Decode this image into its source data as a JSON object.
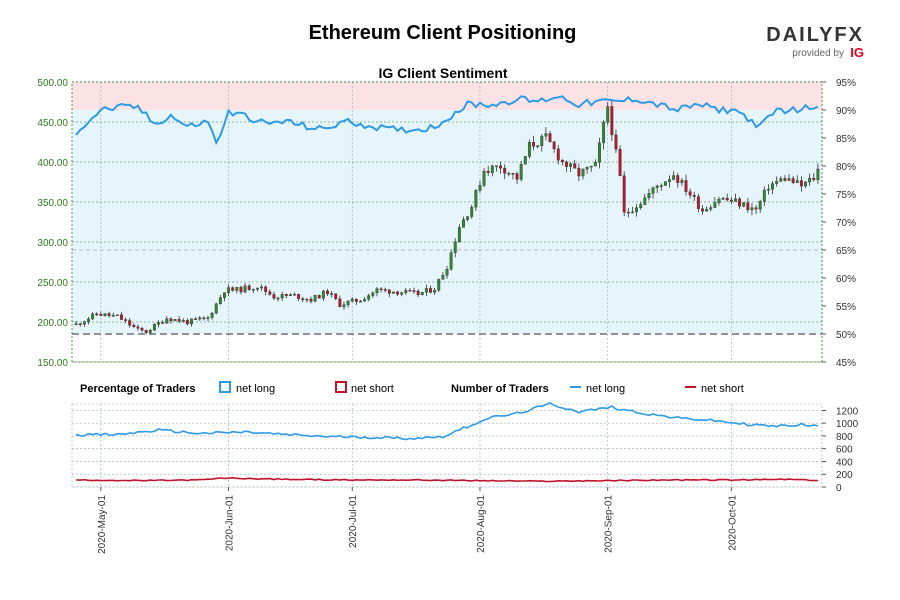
{
  "header": {
    "title": "Ethereum Client Positioning",
    "subtitle": "IG Client Sentiment",
    "brand": {
      "logo_text": "DAILYFX",
      "provided_by": "provided by",
      "ig_mark": "IG",
      "accent": "#e8001c"
    }
  },
  "colors": {
    "net_long": "#2e9be6",
    "net_short": "#c0142a",
    "candle_up": "#2f8a2f",
    "candle_down": "#c0142a",
    "long_zone_fill": "#e6f4fb",
    "short_zone_fill": "#fbe3e5",
    "axis_text": "#2e7d1e",
    "grid": "#9aa8b0"
  },
  "legend": {
    "pct_title": "Percentage of Traders",
    "pct_long": "net long",
    "pct_short": "net short",
    "num_title": "Number of Traders",
    "num_long": "net long",
    "num_short": "net short"
  },
  "chart_data": [
    {
      "type": "candlestick",
      "subtitle": "IG Client Sentiment",
      "series_name": "Ethereum price",
      "ylim": [
        150,
        500
      ],
      "yticks": [
        "150.00",
        "200.00",
        "250.00",
        "300.00",
        "350.00",
        "400.00",
        "450.00",
        "500.00"
      ],
      "y2_label_ticks": [
        "45%",
        "50%",
        "55%",
        "60%",
        "65%",
        "70%",
        "75%",
        "80%",
        "85%",
        "90%",
        "95%"
      ],
      "y2lim": [
        45,
        95
      ],
      "reference_line_pct": 50,
      "close_anchors": [
        [
          "2020-04-25",
          197
        ],
        [
          "2020-04-30",
          210
        ],
        [
          "2020-05-05",
          207
        ],
        [
          "2020-05-10",
          190
        ],
        [
          "2020-05-12",
          188
        ],
        [
          "2020-05-17",
          205
        ],
        [
          "2020-05-22",
          200
        ],
        [
          "2020-05-27",
          205
        ],
        [
          "2020-05-31",
          240
        ],
        [
          "2020-06-03",
          240
        ],
        [
          "2020-06-08",
          245
        ],
        [
          "2020-06-12",
          232
        ],
        [
          "2020-06-17",
          233
        ],
        [
          "2020-06-21",
          228
        ],
        [
          "2020-06-25",
          238
        ],
        [
          "2020-06-28",
          222
        ],
        [
          "2020-07-03",
          228
        ],
        [
          "2020-07-07",
          240
        ],
        [
          "2020-07-12",
          238
        ],
        [
          "2020-07-17",
          235
        ],
        [
          "2020-07-21",
          242
        ],
        [
          "2020-07-24",
          270
        ],
        [
          "2020-07-27",
          320
        ],
        [
          "2020-07-30",
          345
        ],
        [
          "2020-08-02",
          390
        ],
        [
          "2020-08-06",
          395
        ],
        [
          "2020-08-10",
          380
        ],
        [
          "2020-08-13",
          420
        ],
        [
          "2020-08-17",
          430
        ],
        [
          "2020-08-21",
          400
        ],
        [
          "2020-08-25",
          385
        ],
        [
          "2020-08-29",
          395
        ],
        [
          "2020-09-01",
          470
        ],
        [
          "2020-09-02",
          440
        ],
        [
          "2020-09-04",
          380
        ],
        [
          "2020-09-05",
          335
        ],
        [
          "2020-09-09",
          350
        ],
        [
          "2020-09-13",
          370
        ],
        [
          "2020-09-17",
          385
        ],
        [
          "2020-09-21",
          360
        ],
        [
          "2020-09-24",
          340
        ],
        [
          "2020-09-28",
          355
        ],
        [
          "2020-10-02",
          350
        ],
        [
          "2020-10-07",
          340
        ],
        [
          "2020-10-10",
          370
        ],
        [
          "2020-10-14",
          380
        ],
        [
          "2020-10-18",
          370
        ],
        [
          "2020-10-21",
          380
        ],
        [
          "2020-10-22",
          390
        ]
      ],
      "net_long_pct_anchors": [
        [
          "2020-04-25",
          86
        ],
        [
          "2020-04-28",
          88
        ],
        [
          "2020-05-01",
          90
        ],
        [
          "2020-05-06",
          90.5
        ],
        [
          "2020-05-10",
          90.5
        ],
        [
          "2020-05-14",
          87.5
        ],
        [
          "2020-05-18",
          89
        ],
        [
          "2020-05-22",
          87
        ],
        [
          "2020-05-27",
          88
        ],
        [
          "2020-05-29",
          84
        ],
        [
          "2020-06-01",
          89.5
        ],
        [
          "2020-06-05",
          89
        ],
        [
          "2020-06-10",
          87.5
        ],
        [
          "2020-06-15",
          88
        ],
        [
          "2020-06-20",
          87
        ],
        [
          "2020-06-24",
          86.5
        ],
        [
          "2020-06-29",
          88
        ],
        [
          "2020-07-03",
          87.5
        ],
        [
          "2020-07-10",
          86.5
        ],
        [
          "2020-07-17",
          86.5
        ],
        [
          "2020-07-21",
          87
        ],
        [
          "2020-07-25",
          89
        ],
        [
          "2020-07-29",
          91
        ],
        [
          "2020-08-05",
          91
        ],
        [
          "2020-08-10",
          92
        ],
        [
          "2020-08-15",
          91.5
        ],
        [
          "2020-08-20",
          92.5
        ],
        [
          "2020-08-25",
          91
        ],
        [
          "2020-08-30",
          91.5
        ],
        [
          "2020-09-03",
          91.5
        ],
        [
          "2020-09-08",
          92
        ],
        [
          "2020-09-13",
          91
        ],
        [
          "2020-09-18",
          90
        ],
        [
          "2020-09-23",
          91
        ],
        [
          "2020-09-28",
          90
        ],
        [
          "2020-10-02",
          90
        ],
        [
          "2020-10-05",
          88.5
        ],
        [
          "2020-10-08",
          87
        ],
        [
          "2020-10-12",
          90
        ],
        [
          "2020-10-17",
          90
        ],
        [
          "2020-10-20",
          90.5
        ],
        [
          "2020-10-22",
          91
        ]
      ]
    },
    {
      "type": "line",
      "series_names": [
        "net long",
        "net short"
      ],
      "ylim": [
        0,
        1300
      ],
      "yticks": [
        "0",
        "200",
        "400",
        "600",
        "800",
        "1000",
        "1200"
      ],
      "net_long_anchors": [
        [
          "2020-04-25",
          820
        ],
        [
          "2020-05-05",
          820
        ],
        [
          "2020-05-15",
          890
        ],
        [
          "2020-05-25",
          840
        ],
        [
          "2020-06-05",
          860
        ],
        [
          "2020-06-15",
          820
        ],
        [
          "2020-06-25",
          790
        ],
        [
          "2020-07-05",
          780
        ],
        [
          "2020-07-15",
          760
        ],
        [
          "2020-07-23",
          790
        ],
        [
          "2020-07-28",
          920
        ],
        [
          "2020-08-03",
          1080
        ],
        [
          "2020-08-10",
          1150
        ],
        [
          "2020-08-18",
          1300
        ],
        [
          "2020-08-25",
          1180
        ],
        [
          "2020-09-02",
          1250
        ],
        [
          "2020-09-10",
          1150
        ],
        [
          "2020-09-18",
          1080
        ],
        [
          "2020-09-25",
          1050
        ],
        [
          "2020-10-05",
          980
        ],
        [
          "2020-10-12",
          950
        ],
        [
          "2020-10-18",
          980
        ],
        [
          "2020-10-22",
          950
        ]
      ],
      "net_short_anchors": [
        [
          "2020-04-25",
          110
        ],
        [
          "2020-05-10",
          100
        ],
        [
          "2020-05-25",
          110
        ],
        [
          "2020-05-31",
          140
        ],
        [
          "2020-06-15",
          120
        ],
        [
          "2020-07-01",
          110
        ],
        [
          "2020-07-15",
          110
        ],
        [
          "2020-08-01",
          100
        ],
        [
          "2020-08-15",
          90
        ],
        [
          "2020-09-01",
          100
        ],
        [
          "2020-09-15",
          110
        ],
        [
          "2020-10-01",
          110
        ],
        [
          "2020-10-15",
          120
        ],
        [
          "2020-10-22",
          100
        ]
      ]
    }
  ],
  "x_axis": {
    "start": "2020-04-24",
    "end": "2020-10-23",
    "ticks": [
      {
        "date": "2020-05-01",
        "label": "2020-May-01"
      },
      {
        "date": "2020-06-01",
        "label": "2020-Jun-01"
      },
      {
        "date": "2020-07-01",
        "label": "2020-Jul-01"
      },
      {
        "date": "2020-08-01",
        "label": "2020-Aug-01"
      },
      {
        "date": "2020-09-01",
        "label": "2020-Sep-01"
      },
      {
        "date": "2020-10-01",
        "label": "2020-Oct-01"
      }
    ]
  }
}
